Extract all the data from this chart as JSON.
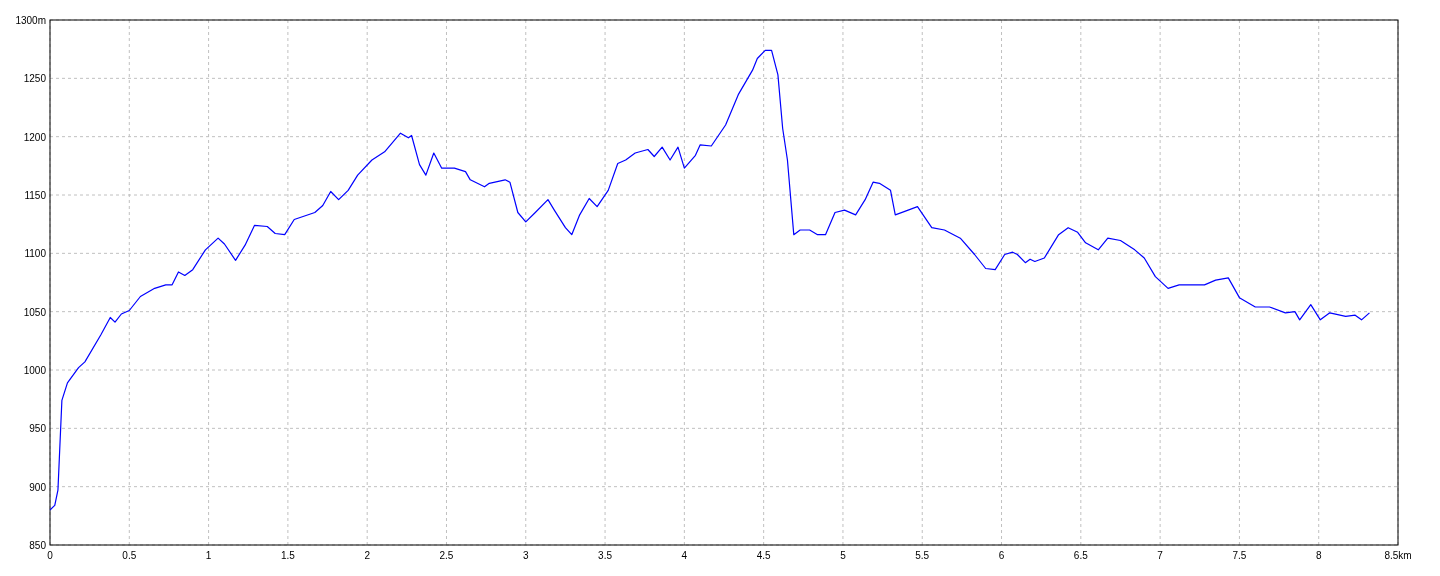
{
  "chart_data": {
    "type": "line",
    "xlim": [
      0,
      8.5
    ],
    "ylim": [
      850,
      1300
    ],
    "grid": true,
    "marker": "none",
    "line_style": "solid",
    "xticks": [
      0,
      0.5,
      1,
      1.5,
      2,
      2.5,
      3,
      3.5,
      4,
      4.5,
      5,
      5.5,
      6,
      6.5,
      7,
      7.5,
      8,
      {
        "value": 8.5,
        "label": "8.5km"
      }
    ],
    "yticks": [
      850,
      900,
      950,
      1000,
      1050,
      1100,
      1150,
      1200,
      1250,
      {
        "value": 1300,
        "label": "1300m"
      }
    ],
    "series": [
      {
        "color": "#0000ff",
        "x": [
          0,
          0.03,
          0.05,
          0.075,
          0.11,
          0.18,
          0.22,
          0.32,
          0.38,
          0.41,
          0.45,
          0.5,
          0.57,
          0.66,
          0.73,
          0.77,
          0.81,
          0.85,
          0.9,
          0.98,
          1.06,
          1.1,
          1.17,
          1.23,
          1.29,
          1.37,
          1.42,
          1.48,
          1.54,
          1.67,
          1.72,
          1.77,
          1.82,
          1.88,
          1.94,
          2.03,
          2.11,
          2.21,
          2.26,
          2.28,
          2.33,
          2.37,
          2.42,
          2.47,
          2.55,
          2.62,
          2.65,
          2.74,
          2.77,
          2.87,
          2.9,
          2.95,
          3.0,
          3.06,
          3.14,
          3.18,
          3.25,
          3.29,
          3.34,
          3.4,
          3.45,
          3.52,
          3.58,
          3.63,
          3.69,
          3.77,
          3.81,
          3.86,
          3.91,
          3.96,
          4.0,
          4.07,
          4.1,
          4.17,
          4.26,
          4.34,
          4.43,
          4.46,
          4.51,
          4.55,
          4.59,
          4.62,
          4.65,
          4.69,
          4.73,
          4.79,
          4.84,
          4.89,
          4.95,
          5.01,
          5.08,
          5.14,
          5.19,
          5.23,
          5.3,
          5.33,
          5.39,
          5.47,
          5.56,
          5.64,
          5.74,
          5.83,
          5.9,
          5.96,
          6.02,
          6.07,
          6.1,
          6.15,
          6.18,
          6.21,
          6.27,
          6.36,
          6.42,
          6.48,
          6.53,
          6.61,
          6.67,
          6.75,
          6.84,
          6.9,
          6.97,
          7.05,
          7.12,
          7.22,
          7.28,
          7.35,
          7.43,
          7.5,
          7.6,
          7.69,
          7.79,
          7.85,
          7.88,
          7.95,
          8.01,
          8.07,
          8.17,
          8.23,
          8.27,
          8.32
        ],
        "values": [
          880,
          884,
          897,
          974,
          989,
          1002,
          1007,
          1030,
          1045,
          1041,
          1048,
          1051,
          1063,
          1070,
          1073,
          1073,
          1084,
          1081,
          1086,
          1103,
          1113,
          1108,
          1094,
          1107,
          1124,
          1123,
          1117,
          1116,
          1129,
          1135,
          1141,
          1153,
          1146,
          1154,
          1167,
          1180,
          1187,
          1203,
          1199,
          1201,
          1176,
          1167,
          1186,
          1173,
          1173,
          1170,
          1163,
          1157,
          1160,
          1163,
          1161,
          1135,
          1127,
          1135,
          1146,
          1137,
          1122,
          1116,
          1133,
          1147,
          1140,
          1154,
          1177,
          1180,
          1186,
          1189,
          1183,
          1191,
          1180,
          1191,
          1173,
          1184,
          1193,
          1192,
          1210,
          1236,
          1257,
          1267,
          1274,
          1274,
          1253,
          1207,
          1180,
          1116,
          1120,
          1120,
          1116,
          1116,
          1135,
          1137,
          1133,
          1146,
          1161,
          1160,
          1154,
          1133,
          1136,
          1140,
          1122,
          1120,
          1113,
          1099,
          1087,
          1086,
          1099,
          1101,
          1099,
          1092,
          1095,
          1093,
          1096,
          1116,
          1122,
          1118,
          1109,
          1103,
          1113,
          1111,
          1103,
          1096,
          1080,
          1070,
          1073,
          1073,
          1073,
          1077,
          1079,
          1062,
          1054,
          1054,
          1049,
          1050,
          1043,
          1056,
          1043,
          1049,
          1046,
          1047,
          1043,
          1049
        ]
      }
    ]
  }
}
